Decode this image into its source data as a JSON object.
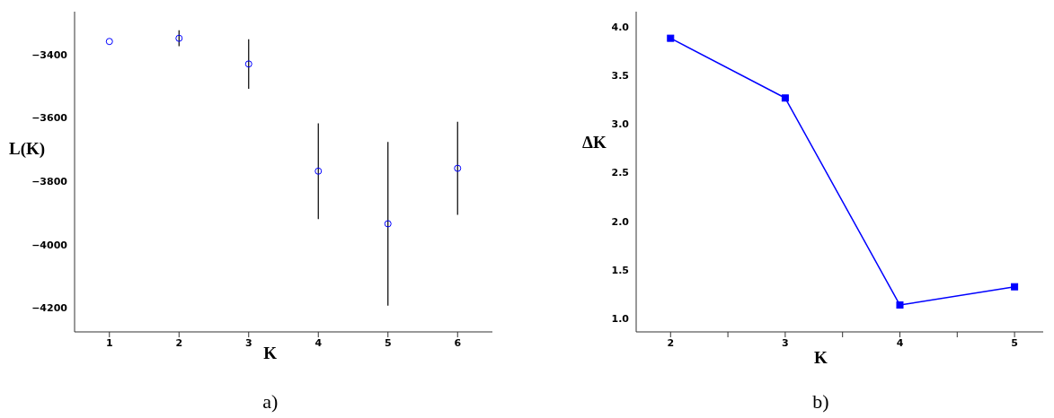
{
  "chart_data": [
    {
      "type": "scatter",
      "xlabel": "K",
      "ylabel": "L(K)",
      "annotations": [
        "a)"
      ],
      "marker": "circle",
      "x": [
        1,
        2,
        3,
        4,
        5,
        6
      ],
      "series": [
        {
          "color": "#0000ff",
          "values": [
            -3359,
            -3349,
            -3430,
            -3768,
            -3934,
            -3759
          ],
          "errors": [
            null,
            25,
            78,
            151,
            258,
            147
          ]
        }
      ],
      "xlim": [
        0.5,
        6.5
      ],
      "xticks": [
        1,
        2,
        3,
        4,
        5,
        6
      ],
      "ylim": [
        -4275,
        -3265
      ],
      "yticks": [
        {
          "value": -3400,
          "label": "−3400"
        },
        {
          "value": -3600,
          "label": "−3600"
        },
        {
          "value": -3800,
          "label": "−3800"
        },
        {
          "value": -4000,
          "label": "−4000"
        },
        {
          "value": -4200,
          "label": "−4200"
        }
      ]
    },
    {
      "type": "line",
      "xlabel": "K",
      "ylabel": "ΔK",
      "annotations": [
        "b)"
      ],
      "marker": "square",
      "line_style": "solid",
      "x": [
        2,
        3,
        4,
        5
      ],
      "series": [
        {
          "color": "#0000ff",
          "values": [
            3.886,
            3.27,
            1.137,
            1.325
          ]
        }
      ],
      "xlim": [
        1.7,
        5.25
      ],
      "xticks": [
        2,
        {
          "value": 2.5,
          "label": null
        },
        3,
        {
          "value": 3.5,
          "label": null
        },
        4,
        {
          "value": 4.5,
          "label": null
        },
        5
      ],
      "ylim": [
        0.86,
        4.16
      ],
      "yticks": [
        {
          "value": 1.0,
          "label": "1.0"
        },
        {
          "value": 1.5,
          "label": "1.5"
        },
        {
          "value": 2.0,
          "label": "2.0"
        },
        {
          "value": 2.5,
          "label": "2.5"
        },
        {
          "value": 3.0,
          "label": "3.0"
        },
        {
          "value": 3.5,
          "label": "3.5"
        },
        {
          "value": 4.0,
          "label": "4.0"
        }
      ]
    }
  ]
}
